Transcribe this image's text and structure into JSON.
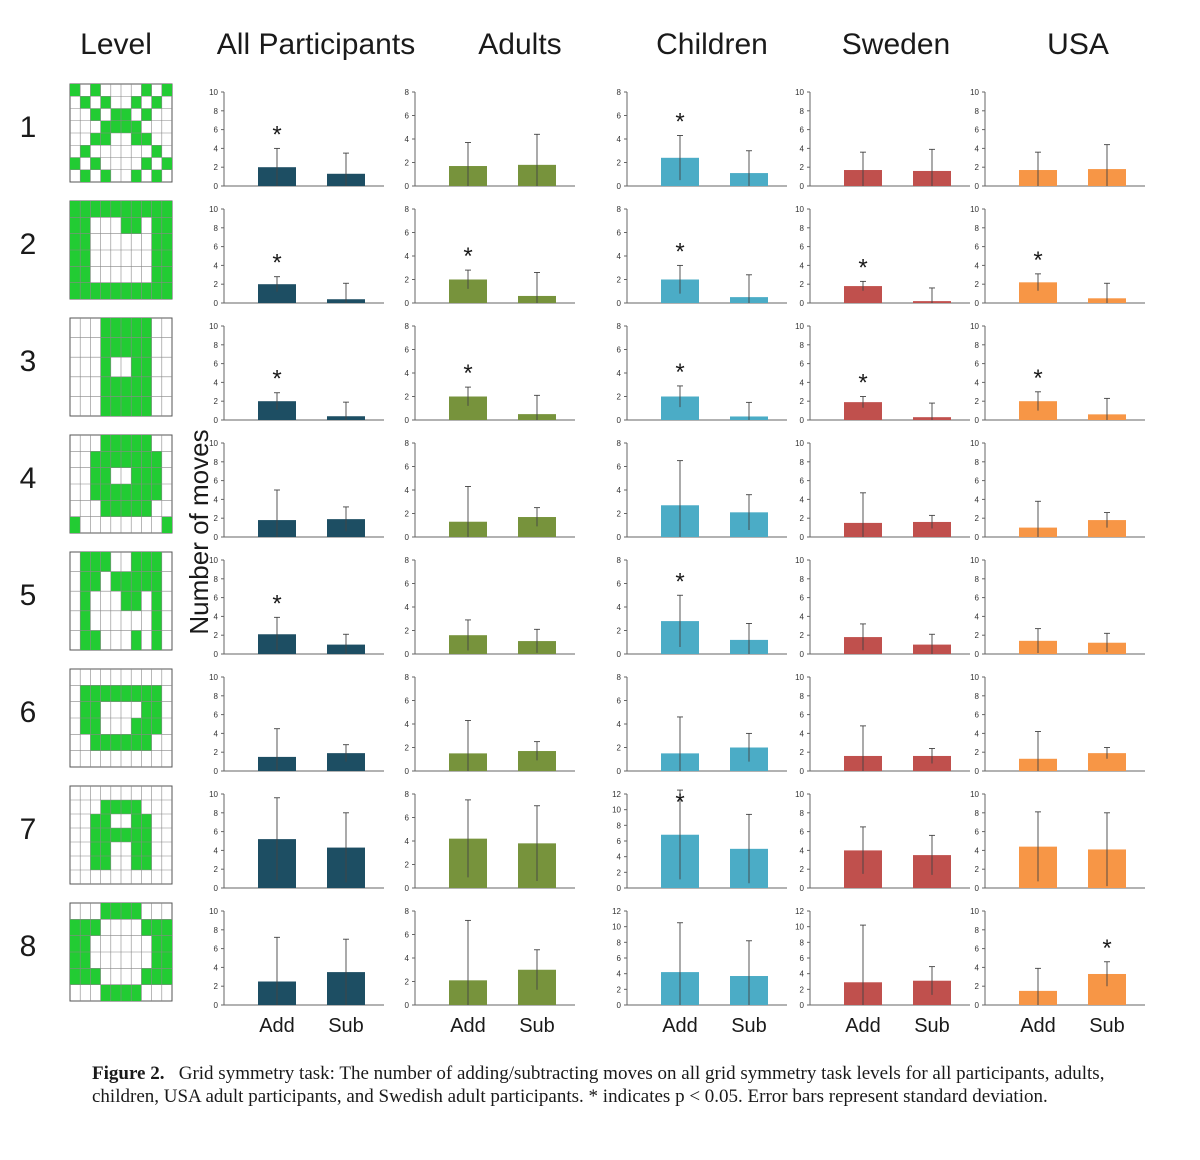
{
  "columns": [
    "Level",
    "All Participants",
    "Adults",
    "Children",
    "Sweden",
    "USA"
  ],
  "level_labels": [
    "1",
    "2",
    "3",
    "4",
    "5",
    "6",
    "7",
    "8"
  ],
  "ylabel": "Number of moves",
  "xlabels": [
    "Add",
    "Sub"
  ],
  "star": "*",
  "colors": {
    "All Participants": "#1d4e63",
    "Adults": "#77933c",
    "Children": "#4bacc6",
    "Sweden": "#c0504d",
    "USA": "#f79646",
    "grid_fill": "#22cc33"
  },
  "grids": [
    [
      "1001000001001",
      "0000000000000"
    ],
    [],
    [],
    [],
    [],
    [],
    [],
    []
  ],
  "chart_data": {
    "type": "bar",
    "categories": [
      "Add",
      "Sub"
    ],
    "panels": [
      {
        "column": "All Participants",
        "level": 1,
        "ylim": [
          0,
          10
        ],
        "ticks": [
          0,
          2,
          4,
          6,
          8,
          10
        ],
        "values": [
          2.0,
          1.3
        ],
        "errors": [
          2.0,
          2.2
        ],
        "sig": [
          true,
          false
        ]
      },
      {
        "column": "All Participants",
        "level": 2,
        "ylim": [
          0,
          10
        ],
        "ticks": [
          0,
          2,
          4,
          6,
          8,
          10
        ],
        "values": [
          2.0,
          0.4
        ],
        "errors": [
          0.8,
          1.7
        ],
        "sig": [
          true,
          false
        ]
      },
      {
        "column": "All Participants",
        "level": 3,
        "ylim": [
          0,
          10
        ],
        "ticks": [
          0,
          2,
          4,
          6,
          8,
          10
        ],
        "values": [
          2.0,
          0.4
        ],
        "errors": [
          0.9,
          1.5
        ],
        "sig": [
          true,
          false
        ]
      },
      {
        "column": "All Participants",
        "level": 4,
        "ylim": [
          0,
          10
        ],
        "ticks": [
          0,
          2,
          4,
          6,
          8,
          10
        ],
        "values": [
          1.8,
          1.9
        ],
        "errors": [
          3.2,
          1.3
        ],
        "sig": [
          false,
          false
        ]
      },
      {
        "column": "All Participants",
        "level": 5,
        "ylim": [
          0,
          10
        ],
        "ticks": [
          0,
          2,
          4,
          6,
          8,
          10
        ],
        "values": [
          2.1,
          1.0
        ],
        "errors": [
          1.8,
          1.1
        ],
        "sig": [
          true,
          false
        ]
      },
      {
        "column": "All Participants",
        "level": 6,
        "ylim": [
          0,
          10
        ],
        "ticks": [
          0,
          2,
          4,
          6,
          8,
          10
        ],
        "values": [
          1.5,
          1.9
        ],
        "errors": [
          3.0,
          0.9
        ],
        "sig": [
          false,
          false
        ]
      },
      {
        "column": "All Participants",
        "level": 7,
        "ylim": [
          0,
          10
        ],
        "ticks": [
          0,
          2,
          4,
          6,
          8,
          10
        ],
        "values": [
          5.2,
          4.3
        ],
        "errors": [
          4.4,
          3.7
        ],
        "sig": [
          false,
          false
        ]
      },
      {
        "column": "All Participants",
        "level": 8,
        "ylim": [
          0,
          10
        ],
        "ticks": [
          0,
          2,
          4,
          6,
          8,
          10
        ],
        "values": [
          2.5,
          3.5
        ],
        "errors": [
          4.7,
          3.5
        ],
        "sig": [
          false,
          false
        ]
      },
      {
        "column": "Adults",
        "level": 1,
        "ylim": [
          0,
          8
        ],
        "ticks": [
          0,
          2,
          4,
          6,
          8
        ],
        "values": [
          1.7,
          1.8
        ],
        "errors": [
          2.0,
          2.6
        ],
        "sig": [
          false,
          false
        ]
      },
      {
        "column": "Adults",
        "level": 2,
        "ylim": [
          0,
          8
        ],
        "ticks": [
          0,
          2,
          4,
          6,
          8
        ],
        "values": [
          2.0,
          0.6
        ],
        "errors": [
          0.8,
          2.0
        ],
        "sig": [
          true,
          false
        ]
      },
      {
        "column": "Adults",
        "level": 3,
        "ylim": [
          0,
          8
        ],
        "ticks": [
          0,
          2,
          4,
          6,
          8
        ],
        "values": [
          2.0,
          0.5
        ],
        "errors": [
          0.8,
          1.6
        ],
        "sig": [
          true,
          false
        ]
      },
      {
        "column": "Adults",
        "level": 4,
        "ylim": [
          0,
          8
        ],
        "ticks": [
          0,
          2,
          4,
          6,
          8
        ],
        "values": [
          1.3,
          1.7
        ],
        "errors": [
          3.0,
          0.8
        ],
        "sig": [
          false,
          false
        ]
      },
      {
        "column": "Adults",
        "level": 5,
        "ylim": [
          0,
          8
        ],
        "ticks": [
          0,
          2,
          4,
          6,
          8
        ],
        "values": [
          1.6,
          1.1
        ],
        "errors": [
          1.3,
          1.0
        ],
        "sig": [
          false,
          false
        ]
      },
      {
        "column": "Adults",
        "level": 6,
        "ylim": [
          0,
          8
        ],
        "ticks": [
          0,
          2,
          4,
          6,
          8
        ],
        "values": [
          1.5,
          1.7
        ],
        "errors": [
          2.8,
          0.8
        ],
        "sig": [
          false,
          false
        ]
      },
      {
        "column": "Adults",
        "level": 7,
        "ylim": [
          0,
          8
        ],
        "ticks": [
          0,
          2,
          4,
          6,
          8
        ],
        "values": [
          4.2,
          3.8
        ],
        "errors": [
          3.3,
          3.2
        ],
        "sig": [
          false,
          false
        ]
      },
      {
        "column": "Adults",
        "level": 8,
        "ylim": [
          0,
          8
        ],
        "ticks": [
          0,
          2,
          4,
          6,
          8
        ],
        "values": [
          2.1,
          3.0
        ],
        "errors": [
          5.1,
          1.7
        ],
        "sig": [
          false,
          false
        ]
      },
      {
        "column": "Children",
        "level": 1,
        "ylim": [
          0,
          8
        ],
        "ticks": [
          0,
          2,
          4,
          6,
          8
        ],
        "values": [
          2.4,
          1.1
        ],
        "errors": [
          1.9,
          1.9
        ],
        "sig": [
          true,
          false
        ]
      },
      {
        "column": "Children",
        "level": 2,
        "ylim": [
          0,
          8
        ],
        "ticks": [
          0,
          2,
          4,
          6,
          8
        ],
        "values": [
          2.0,
          0.5
        ],
        "errors": [
          1.2,
          1.9
        ],
        "sig": [
          true,
          false
        ]
      },
      {
        "column": "Children",
        "level": 3,
        "ylim": [
          0,
          8
        ],
        "ticks": [
          0,
          2,
          4,
          6,
          8
        ],
        "values": [
          2.0,
          0.3
        ],
        "errors": [
          0.9,
          1.2
        ],
        "sig": [
          true,
          false
        ]
      },
      {
        "column": "Children",
        "level": 4,
        "ylim": [
          0,
          8
        ],
        "ticks": [
          0,
          2,
          4,
          6,
          8
        ],
        "values": [
          2.7,
          2.1
        ],
        "errors": [
          3.8,
          1.5
        ],
        "sig": [
          false,
          false
        ]
      },
      {
        "column": "Children",
        "level": 5,
        "ylim": [
          0,
          8
        ],
        "ticks": [
          0,
          2,
          4,
          6,
          8
        ],
        "values": [
          2.8,
          1.2
        ],
        "errors": [
          2.2,
          1.4
        ],
        "sig": [
          true,
          false
        ]
      },
      {
        "column": "Children",
        "level": 6,
        "ylim": [
          0,
          8
        ],
        "ticks": [
          0,
          2,
          4,
          6,
          8
        ],
        "values": [
          1.5,
          2.0
        ],
        "errors": [
          3.1,
          1.2
        ],
        "sig": [
          false,
          false
        ]
      },
      {
        "column": "Children",
        "level": 7,
        "ylim": [
          0,
          12
        ],
        "ticks": [
          0,
          2,
          4,
          6,
          8,
          10,
          12
        ],
        "values": [
          6.8,
          5.0
        ],
        "errors": [
          5.7,
          4.4
        ],
        "sig": [
          true,
          false
        ]
      },
      {
        "column": "Children",
        "level": 8,
        "ylim": [
          0,
          12
        ],
        "ticks": [
          0,
          2,
          4,
          6,
          8,
          10,
          12
        ],
        "values": [
          4.2,
          3.7
        ],
        "errors": [
          6.3,
          4.5
        ],
        "sig": [
          false,
          false
        ]
      },
      {
        "column": "Sweden",
        "level": 1,
        "ylim": [
          0,
          10
        ],
        "ticks": [
          0,
          2,
          4,
          6,
          8,
          10
        ],
        "values": [
          1.7,
          1.6
        ],
        "errors": [
          1.9,
          2.3
        ],
        "sig": [
          false,
          false
        ]
      },
      {
        "column": "Sweden",
        "level": 2,
        "ylim": [
          0,
          10
        ],
        "ticks": [
          0,
          2,
          4,
          6,
          8,
          10
        ],
        "values": [
          1.8,
          0.2
        ],
        "errors": [
          0.5,
          1.4
        ],
        "sig": [
          true,
          false
        ]
      },
      {
        "column": "Sweden",
        "level": 3,
        "ylim": [
          0,
          10
        ],
        "ticks": [
          0,
          2,
          4,
          6,
          8,
          10
        ],
        "values": [
          1.9,
          0.3
        ],
        "errors": [
          0.6,
          1.5
        ],
        "sig": [
          true,
          false
        ]
      },
      {
        "column": "Sweden",
        "level": 4,
        "ylim": [
          0,
          10
        ],
        "ticks": [
          0,
          2,
          4,
          6,
          8,
          10
        ],
        "values": [
          1.5,
          1.6
        ],
        "errors": [
          3.2,
          0.7
        ],
        "sig": [
          false,
          false
        ]
      },
      {
        "column": "Sweden",
        "level": 5,
        "ylim": [
          0,
          10
        ],
        "ticks": [
          0,
          2,
          4,
          6,
          8,
          10
        ],
        "values": [
          1.8,
          1.0
        ],
        "errors": [
          1.4,
          1.1
        ],
        "sig": [
          false,
          false
        ]
      },
      {
        "column": "Sweden",
        "level": 6,
        "ylim": [
          0,
          10
        ],
        "ticks": [
          0,
          2,
          4,
          6,
          8,
          10
        ],
        "values": [
          1.6,
          1.6
        ],
        "errors": [
          3.2,
          0.8
        ],
        "sig": [
          false,
          false
        ]
      },
      {
        "column": "Sweden",
        "level": 7,
        "ylim": [
          0,
          10
        ],
        "ticks": [
          0,
          2,
          4,
          6,
          8,
          10
        ],
        "values": [
          4.0,
          3.5
        ],
        "errors": [
          2.5,
          2.1
        ],
        "sig": [
          false,
          false
        ]
      },
      {
        "column": "Sweden",
        "level": 8,
        "ylim": [
          0,
          12
        ],
        "ticks": [
          0,
          2,
          4,
          6,
          8,
          10,
          12
        ],
        "values": [
          2.9,
          3.1
        ],
        "errors": [
          7.3,
          1.8
        ],
        "sig": [
          false,
          false
        ]
      },
      {
        "column": "USA",
        "level": 1,
        "ylim": [
          0,
          10
        ],
        "ticks": [
          0,
          2,
          4,
          6,
          8,
          10
        ],
        "values": [
          1.7,
          1.8
        ],
        "errors": [
          1.9,
          2.6
        ],
        "sig": [
          false,
          false
        ]
      },
      {
        "column": "USA",
        "level": 2,
        "ylim": [
          0,
          10
        ],
        "ticks": [
          0,
          2,
          4,
          6,
          8,
          10
        ],
        "values": [
          2.2,
          0.5
        ],
        "errors": [
          0.9,
          1.6
        ],
        "sig": [
          true,
          false
        ]
      },
      {
        "column": "USA",
        "level": 3,
        "ylim": [
          0,
          10
        ],
        "ticks": [
          0,
          2,
          4,
          6,
          8,
          10
        ],
        "values": [
          2.0,
          0.6
        ],
        "errors": [
          1.0,
          1.7
        ],
        "sig": [
          true,
          false
        ]
      },
      {
        "column": "USA",
        "level": 4,
        "ylim": [
          0,
          10
        ],
        "ticks": [
          0,
          2,
          4,
          6,
          8,
          10
        ],
        "values": [
          1.0,
          1.8
        ],
        "errors": [
          2.8,
          0.8
        ],
        "sig": [
          false,
          false
        ]
      },
      {
        "column": "USA",
        "level": 5,
        "ylim": [
          0,
          10
        ],
        "ticks": [
          0,
          2,
          4,
          6,
          8,
          10
        ],
        "values": [
          1.4,
          1.2
        ],
        "errors": [
          1.3,
          1.0
        ],
        "sig": [
          false,
          false
        ]
      },
      {
        "column": "USA",
        "level": 6,
        "ylim": [
          0,
          10
        ],
        "ticks": [
          0,
          2,
          4,
          6,
          8,
          10
        ],
        "values": [
          1.3,
          1.9
        ],
        "errors": [
          2.9,
          0.6
        ],
        "sig": [
          false,
          false
        ]
      },
      {
        "column": "USA",
        "level": 7,
        "ylim": [
          0,
          10
        ],
        "ticks": [
          0,
          2,
          4,
          6,
          8,
          10
        ],
        "values": [
          4.4,
          4.1
        ],
        "errors": [
          3.7,
          3.9
        ],
        "sig": [
          false,
          false
        ]
      },
      {
        "column": "USA",
        "level": 8,
        "ylim": [
          0,
          10
        ],
        "ticks": [
          0,
          2,
          4,
          6,
          8,
          10
        ],
        "values": [
          1.5,
          3.3
        ],
        "errors": [
          2.4,
          1.3
        ],
        "sig": [
          false,
          true
        ]
      }
    ]
  },
  "caption": {
    "label": "Figure 2.",
    "text": "Grid symmetry task: The number of adding/subtracting moves on all grid symmetry task levels for all participants, adults, children, USA adult participants, and Swedish adult participants. * indicates p < 0.05. Error bars represent standard deviation."
  }
}
